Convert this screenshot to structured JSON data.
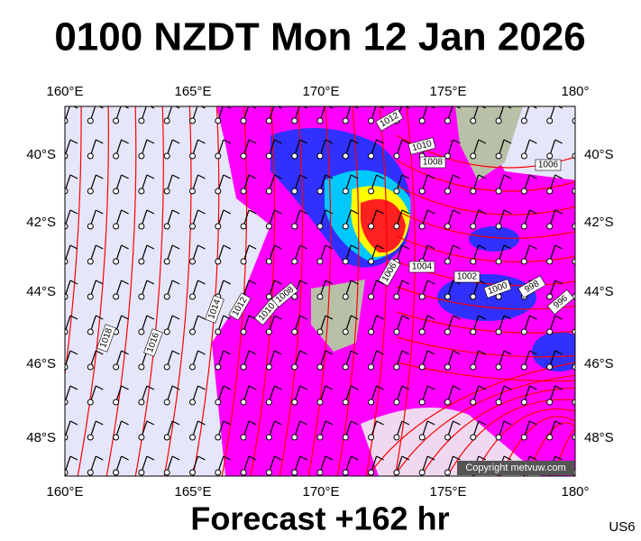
{
  "title": "0100 NZDT Mon 12 Jan 2026",
  "footer": "Forecast +162 hr",
  "code": "US6",
  "copyright": "Copyright metvuw.com",
  "lon_labels": [
    "160°E",
    "165°E",
    "170°E",
    "175°E",
    "180°"
  ],
  "lat_labels": [
    "40°S",
    "42°S",
    "44°S",
    "46°S",
    "48°S"
  ],
  "isobar_labels": [
    "1018",
    "1016",
    "1014",
    "1012",
    "1010",
    "1008",
    "1006",
    "1004",
    "1012",
    "1010",
    "1008",
    "1006",
    "1002",
    "1000",
    "998",
    "996"
  ]
}
